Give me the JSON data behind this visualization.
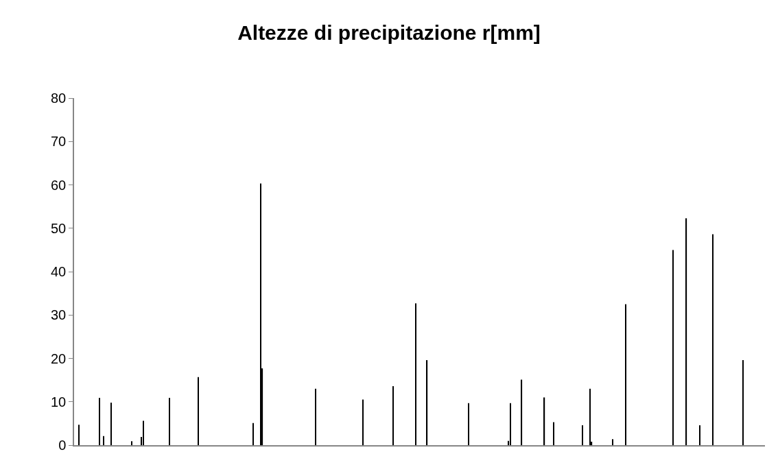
{
  "chart_data": {
    "type": "bar",
    "title": "Altezze di precipitazione r[mm]",
    "categories": [
      null,
      null,
      null,
      null,
      null,
      null,
      null,
      null,
      null,
      null,
      null,
      null,
      null,
      null,
      null,
      null,
      null,
      null,
      null,
      null,
      null,
      null,
      null,
      null,
      null,
      null,
      null,
      null,
      null,
      null,
      null,
      null,
      null,
      null,
      null,
      null,
      null,
      null,
      null,
      null,
      null,
      null,
      null,
      null,
      null,
      null,
      null,
      null,
      null,
      null,
      null,
      null,
      null,
      null,
      null,
      null,
      null,
      null,
      null,
      null,
      null,
      null,
      null,
      null,
      null,
      null,
      null,
      null,
      null,
      null,
      null,
      null,
      null,
      null,
      null,
      null,
      null,
      null,
      null,
      null,
      null,
      null,
      null,
      null,
      null,
      null,
      null,
      null,
      null,
      null,
      null,
      null,
      null,
      null,
      null,
      null,
      null,
      null,
      null,
      null,
      null,
      null,
      null,
      null,
      null,
      null,
      null,
      null,
      null,
      null,
      null,
      null,
      null,
      null,
      null,
      null,
      null,
      null,
      null,
      null,
      null,
      null,
      null,
      null,
      null,
      null,
      null,
      null,
      null,
      null,
      null,
      null,
      null,
      null,
      null,
      null,
      null,
      null,
      null,
      null,
      null,
      null,
      null,
      null,
      null,
      null,
      null,
      null,
      null,
      null,
      null,
      null,
      null,
      null,
      null,
      null,
      null,
      null,
      null,
      null,
      null,
      null,
      null,
      null,
      null,
      null,
      null,
      null,
      null,
      null,
      null,
      null,
      null,
      null,
      null,
      null,
      null,
      null,
      null,
      null,
      null,
      null,
      null,
      null,
      null,
      null,
      null,
      null,
      null,
      null,
      null,
      null,
      null,
      null,
      null,
      null,
      null,
      null,
      null,
      null,
      null,
      null,
      null,
      null,
      null,
      null,
      null,
      null,
      null,
      null,
      null,
      null,
      null,
      null,
      null,
      null,
      null,
      null,
      null,
      null,
      null,
      null,
      null,
      null,
      null,
      null,
      null,
      null,
      null,
      null,
      null,
      null,
      null,
      null,
      null,
      null,
      null,
      null,
      null,
      null,
      null,
      null,
      null,
      null,
      null,
      null,
      null,
      null,
      null,
      null,
      null,
      null,
      null,
      null,
      null,
      null,
      null,
      null,
      null,
      null,
      null,
      null,
      null,
      null,
      null,
      null,
      null,
      null,
      null,
      null,
      null,
      null,
      null,
      null,
      null,
      null,
      null,
      null,
      null,
      null,
      null,
      null,
      null,
      null,
      null,
      null,
      null,
      null,
      null,
      null,
      null,
      null,
      null,
      null,
      null,
      null,
      null,
      null,
      null,
      null,
      null,
      null,
      null,
      null,
      null,
      null,
      null,
      null,
      null,
      null,
      null,
      null,
      null,
      null,
      null,
      null,
      null,
      null,
      null,
      null,
      null,
      null,
      null,
      null,
      null,
      null,
      null,
      null,
      null,
      null,
      null,
      null,
      null,
      null,
      null,
      null,
      null,
      null,
      null,
      null,
      null,
      null,
      null,
      null,
      null,
      null,
      null,
      null,
      null,
      null,
      null,
      null,
      null,
      null,
      null,
      null,
      null,
      null,
      null,
      null,
      null,
      null,
      null,
      null,
      null
    ],
    "values": [
      0,
      0,
      4.7,
      0,
      0,
      0,
      0,
      0,
      0,
      0,
      0,
      0,
      0,
      10.9,
      0,
      2.1,
      0,
      0,
      0,
      9.8,
      0,
      0,
      0,
      0,
      0,
      0,
      0,
      0,
      0,
      0,
      0.9,
      0,
      0,
      0,
      0,
      1.9,
      5.6,
      0,
      0,
      0,
      0,
      0,
      0,
      0,
      0,
      0,
      0,
      0,
      0,
      0,
      10.9,
      0,
      0,
      0,
      0,
      0,
      0,
      0,
      0,
      0,
      0,
      0,
      0,
      0,
      0,
      15.7,
      0,
      0,
      0,
      0,
      0,
      0,
      0,
      0,
      0,
      0,
      0,
      0,
      0,
      0,
      0,
      0,
      0,
      0,
      0,
      0,
      0,
      0,
      0,
      0,
      0,
      0,
      0,
      0,
      5.1,
      0,
      0,
      0,
      60.3,
      17.7,
      0,
      0,
      0,
      0,
      0,
      0,
      0,
      0,
      0,
      0,
      0,
      0,
      0,
      0,
      0,
      0,
      0,
      0,
      0,
      0,
      0,
      0,
      0,
      0,
      0,
      0,
      0,
      13.0,
      0,
      0,
      0,
      0,
      0,
      0,
      0,
      0,
      0,
      0,
      0,
      0,
      0,
      0,
      0,
      0,
      0,
      0,
      0,
      0,
      0,
      0,
      0,
      0,
      10.5,
      0,
      0,
      0,
      0,
      0,
      0,
      0,
      0,
      0,
      0,
      0,
      0,
      0,
      0,
      0,
      13.6,
      0,
      0,
      0,
      0,
      0,
      0,
      0,
      0,
      0,
      0,
      0,
      32.7,
      0,
      0,
      0,
      0,
      0,
      19.6,
      0,
      0,
      0,
      0,
      0,
      0,
      0,
      0,
      0,
      0,
      0,
      0,
      0,
      0,
      0,
      0,
      0,
      0,
      0,
      0,
      0,
      9.7,
      0,
      0,
      0,
      0,
      0,
      0,
      0,
      0,
      0,
      0,
      0,
      0,
      0,
      0,
      0,
      0,
      0,
      0,
      0,
      0,
      1.0,
      9.7,
      0,
      0,
      0,
      0,
      0,
      15.1,
      0,
      0,
      0,
      0,
      0,
      0,
      0,
      0,
      0,
      0,
      0,
      11.0,
      0,
      0,
      0,
      0,
      5.3,
      0,
      0,
      0,
      0,
      0,
      0,
      0,
      0,
      0,
      0,
      0,
      0,
      0,
      0,
      4.6,
      0,
      0,
      0,
      13.0,
      0.8,
      0,
      0,
      0,
      0,
      0,
      0,
      0,
      0,
      0,
      0,
      1.4,
      0,
      0,
      0,
      0,
      0,
      0,
      32.5,
      0,
      0,
      0,
      0,
      0,
      0,
      0,
      0,
      0,
      0,
      0,
      0,
      0,
      0,
      0,
      0,
      0,
      0,
      0,
      0,
      0,
      0,
      0,
      0,
      45.0,
      0,
      0,
      0,
      0,
      0,
      0,
      52.3,
      0,
      0,
      0,
      0,
      0,
      0,
      4.6,
      0,
      0,
      0,
      0,
      0,
      0,
      48.6,
      0,
      0,
      0,
      0,
      0,
      0,
      0,
      0,
      0,
      0,
      0,
      0,
      0,
      0,
      0,
      19.6,
      0,
      0,
      0,
      0,
      0,
      0,
      0,
      0,
      0,
      0,
      0
    ],
    "color": "#000000",
    "ylim": [
      0,
      80
    ],
    "yticks": [
      0,
      10,
      20,
      30,
      40,
      50,
      60,
      70,
      80
    ],
    "tick_labels": "y"
  }
}
